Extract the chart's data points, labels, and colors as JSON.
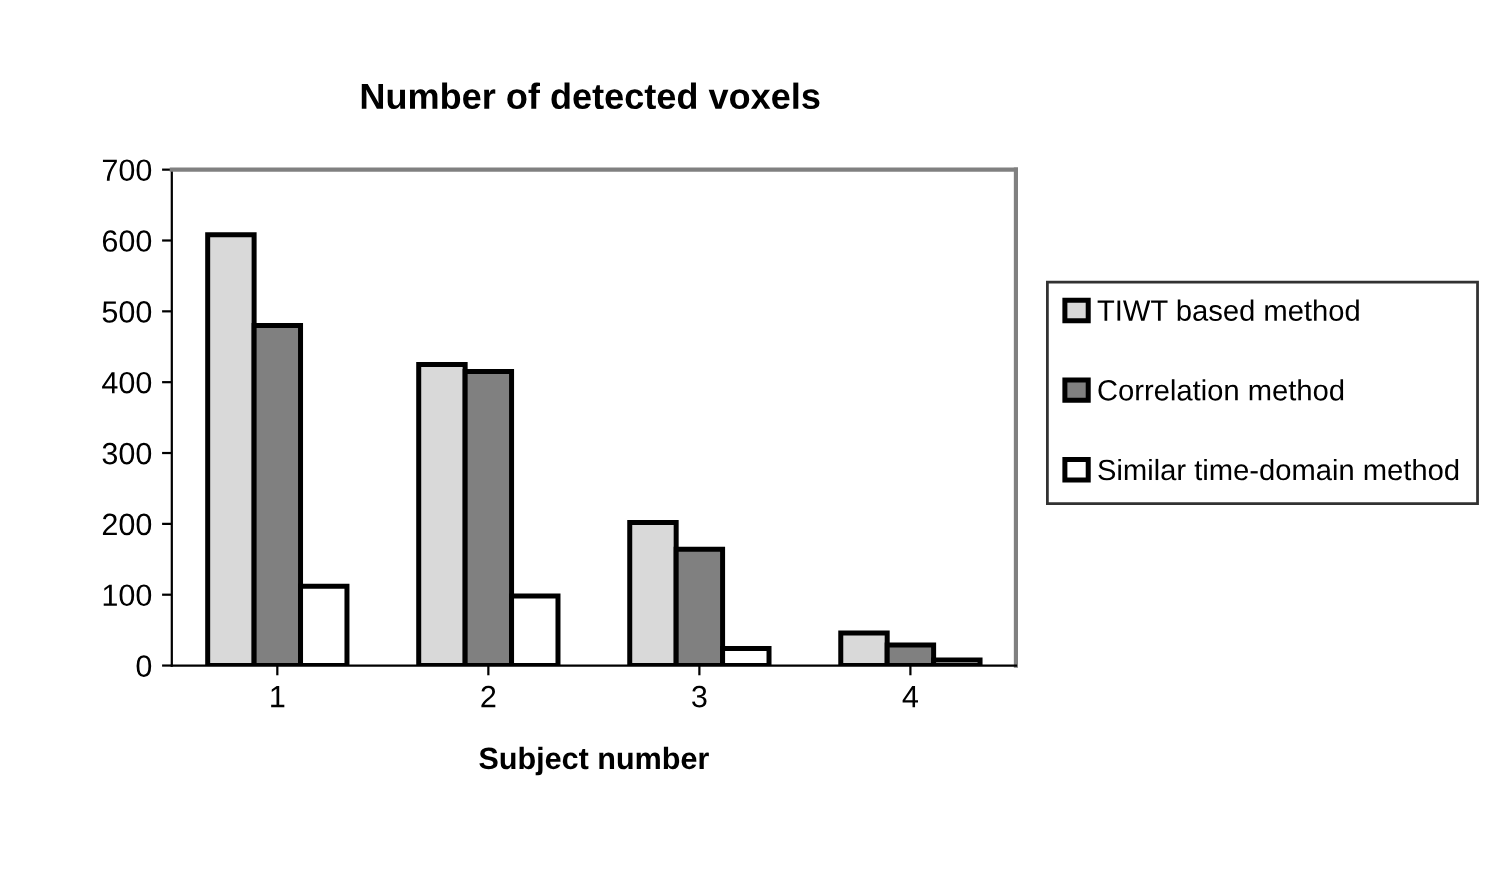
{
  "chart_data": {
    "type": "bar",
    "title": "Number of detected voxels",
    "xlabel": "Subject number",
    "categories": [
      "1",
      "2",
      "3",
      "4"
    ],
    "series": [
      {
        "name": "TIWT based method",
        "color": "#d9d9d9",
        "values": [
          608,
          425,
          202,
          46
        ]
      },
      {
        "name": "Correlation method",
        "color": "#808080",
        "values": [
          480,
          415,
          164,
          29
        ]
      },
      {
        "name": "Similar time-domain method",
        "color": "#ffffff",
        "values": [
          112,
          98,
          24,
          8
        ]
      }
    ],
    "ylim": [
      0,
      700
    ],
    "yticks": [
      0,
      100,
      200,
      300,
      400,
      500,
      600,
      700
    ],
    "grid": false,
    "legend": "right"
  }
}
